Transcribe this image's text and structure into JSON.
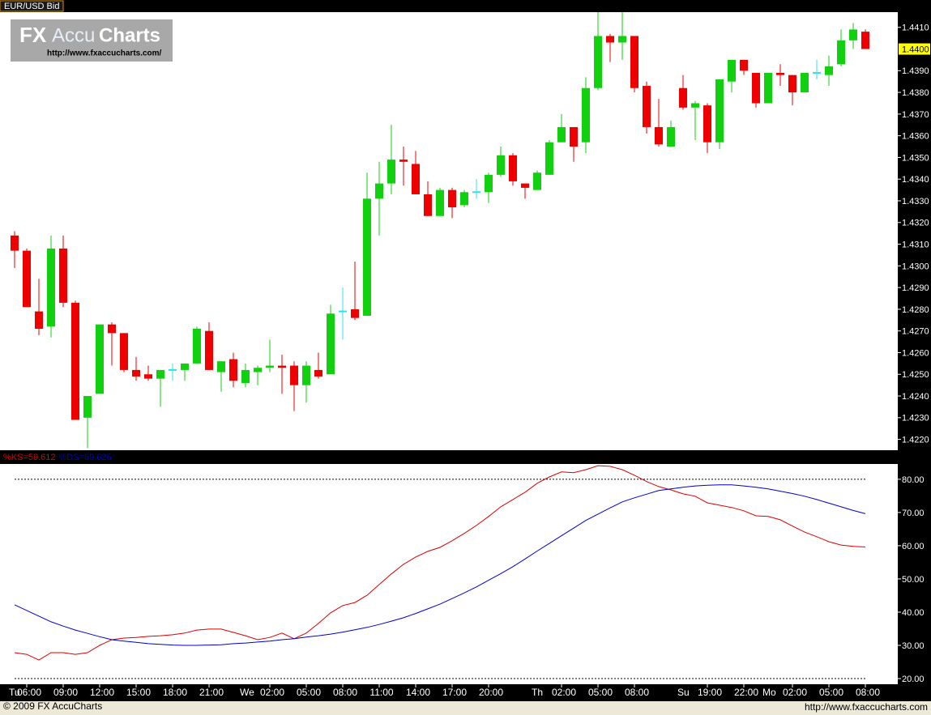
{
  "chart_data": [
    {
      "type": "candlestick",
      "title": "EUR/USD Bid",
      "categories": [
        null,
        "06:00",
        null,
        null,
        "09:00",
        null,
        null,
        "12:00",
        null,
        null,
        "15:00",
        null,
        null,
        "18:00",
        null,
        null,
        "21:00",
        null,
        null,
        null,
        null,
        "02:00",
        null,
        null,
        "05:00",
        null,
        null,
        "08:00",
        null,
        null,
        "11:00",
        null,
        null,
        "14:00",
        null,
        null,
        "17:00",
        null,
        null,
        "20:00",
        null,
        null,
        null,
        null,
        null,
        "02:00",
        null,
        null,
        "05:00",
        null,
        null,
        "08:00",
        null,
        null,
        null,
        null,
        null,
        "19:00",
        null,
        null,
        "22:00",
        null,
        null,
        null,
        "02:00",
        null,
        null,
        "05:00",
        null,
        null,
        "08:00"
      ],
      "day_labels": [
        "Tu",
        null,
        null,
        null,
        null,
        null,
        null,
        null,
        null,
        null,
        null,
        null,
        null,
        null,
        null,
        null,
        null,
        null,
        null,
        "We",
        null,
        null,
        null,
        null,
        null,
        null,
        null,
        null,
        null,
        null,
        null,
        null,
        null,
        null,
        null,
        null,
        null,
        null,
        null,
        null,
        null,
        null,
        null,
        "Th",
        null,
        null,
        null,
        null,
        null,
        null,
        null,
        null,
        null,
        null,
        null,
        "Su",
        null,
        null,
        null,
        null,
        null,
        null,
        "Mo",
        null,
        null,
        null,
        null,
        null,
        null,
        null,
        null
      ],
      "open": [
        1.4314,
        1.4307,
        1.4279,
        1.4272,
        1.4308,
        1.4283,
        1.423,
        1.4241,
        1.4273,
        1.4269,
        1.4252,
        1.425,
        1.4248,
        1.4252,
        1.4252,
        1.4255,
        1.427,
        1.4251,
        1.4257,
        1.4246,
        1.4251,
        1.4253,
        1.4254,
        1.4254,
        1.4245,
        1.4252,
        1.425,
        1.4279,
        1.428,
        1.4277,
        1.4331,
        1.4338,
        1.4349,
        1.4347,
        1.4333,
        1.4323,
        1.4335,
        1.4328,
        1.4334,
        1.4334,
        1.4342,
        1.4351,
        1.4338,
        1.4335,
        1.4342,
        1.4357,
        1.4364,
        1.4357,
        1.4382,
        1.4406,
        1.4403,
        1.4406,
        1.4383,
        1.4364,
        1.4355,
        1.4382,
        1.4373,
        1.4374,
        1.4357,
        1.4385,
        1.4395,
        1.4389,
        1.4375,
        1.4389,
        1.4388,
        1.438,
        1.4389,
        1.4388,
        1.4393,
        1.4404,
        1.4408
      ],
      "high": [
        1.4316,
        1.4308,
        1.4294,
        1.4314,
        1.4314,
        1.4284,
        1.424,
        1.4273,
        1.4274,
        1.4269,
        1.4258,
        1.4254,
        1.4252,
        1.4255,
        1.4255,
        1.4272,
        1.4274,
        1.4256,
        1.426,
        1.4255,
        1.4254,
        1.4266,
        1.4259,
        1.4256,
        1.4256,
        1.426,
        1.4282,
        1.429,
        1.4302,
        1.4343,
        1.4348,
        1.4365,
        1.4355,
        1.4353,
        1.4339,
        1.4336,
        1.4336,
        1.4335,
        1.434,
        1.4343,
        1.4355,
        1.4352,
        1.4338,
        1.4344,
        1.4358,
        1.437,
        1.4364,
        1.4387,
        1.4417,
        1.4407,
        1.4417,
        1.4406,
        1.4385,
        1.4377,
        1.4367,
        1.4388,
        1.4376,
        1.4375,
        1.4386,
        1.4395,
        1.4395,
        1.4389,
        1.4389,
        1.4393,
        1.4388,
        1.4389,
        1.4395,
        1.4397,
        1.4409,
        1.4412,
        1.4409
      ],
      "low": [
        1.4299,
        1.4281,
        1.4268,
        1.4267,
        1.4281,
        1.4229,
        1.4216,
        1.4241,
        1.4254,
        1.4251,
        1.4247,
        1.4247,
        1.4235,
        1.4247,
        1.4247,
        1.4255,
        1.4252,
        1.4242,
        1.4244,
        1.4244,
        1.4245,
        1.4251,
        1.4241,
        1.4233,
        1.4237,
        1.4248,
        1.425,
        1.4266,
        1.4275,
        1.4277,
        1.4314,
        1.4333,
        1.4337,
        1.4333,
        1.4323,
        1.4323,
        1.4322,
        1.4327,
        1.4331,
        1.4329,
        1.4341,
        1.4337,
        1.4331,
        1.4335,
        1.4342,
        1.4357,
        1.4348,
        1.4352,
        1.4381,
        1.4394,
        1.4395,
        1.438,
        1.4361,
        1.4355,
        1.4355,
        1.4372,
        1.4358,
        1.4352,
        1.4354,
        1.438,
        1.4388,
        1.4373,
        1.4375,
        1.4383,
        1.4374,
        1.438,
        1.4386,
        1.4383,
        1.4392,
        1.44,
        1.44
      ],
      "close": [
        1.4307,
        1.4281,
        1.4271,
        1.4308,
        1.4283,
        1.4229,
        1.424,
        1.4273,
        1.4269,
        1.4252,
        1.4249,
        1.4248,
        1.4252,
        1.4252,
        1.4255,
        1.4271,
        1.4252,
        1.4256,
        1.4247,
        1.4252,
        1.4253,
        1.4254,
        1.4253,
        1.4245,
        1.4254,
        1.4249,
        1.4278,
        1.4279,
        1.4276,
        1.4331,
        1.4338,
        1.4349,
        1.4348,
        1.4333,
        1.4323,
        1.4335,
        1.4327,
        1.4334,
        1.4334,
        1.4342,
        1.4351,
        1.4339,
        1.4336,
        1.4343,
        1.4357,
        1.4364,
        1.4355,
        1.4382,
        1.4406,
        1.4403,
        1.4406,
        1.4382,
        1.4364,
        1.4356,
        1.4364,
        1.4373,
        1.4375,
        1.4357,
        1.4386,
        1.4395,
        1.439,
        1.4375,
        1.4389,
        1.4388,
        1.438,
        1.4389,
        1.4389,
        1.4392,
        1.4404,
        1.4409,
        1.44
      ],
      "up_color": "#10d010",
      "down_color": "#ee0000",
      "doji_color": "#30e0f0",
      "ylim": [
        1.4215,
        1.4417
      ],
      "yticks": [
        {
          "value": 1.422,
          "label": "1.4220"
        },
        {
          "value": 1.423,
          "label": "1.4230"
        },
        {
          "value": 1.424,
          "label": "1.4240"
        },
        {
          "value": 1.425,
          "label": "1.4250"
        },
        {
          "value": 1.426,
          "label": "1.4260"
        },
        {
          "value": 1.427,
          "label": "1.4270"
        },
        {
          "value": 1.428,
          "label": "1.4280"
        },
        {
          "value": 1.429,
          "label": "1.4290"
        },
        {
          "value": 1.43,
          "label": "1.4300"
        },
        {
          "value": 1.431,
          "label": "1.4310"
        },
        {
          "value": 1.432,
          "label": "1.4320"
        },
        {
          "value": 1.433,
          "label": "1.4330"
        },
        {
          "value": 1.434,
          "label": "1.4340"
        },
        {
          "value": 1.435,
          "label": "1.4350"
        },
        {
          "value": 1.436,
          "label": "1.4360"
        },
        {
          "value": 1.437,
          "label": "1.4370"
        },
        {
          "value": 1.438,
          "label": "1.4380"
        },
        {
          "value": 1.439,
          "label": "1.4390"
        },
        {
          "value": 1.441,
          "label": "1.4410"
        }
      ],
      "last_price": {
        "value": 1.44,
        "label": "1.4400"
      }
    },
    {
      "type": "line",
      "series": [
        {
          "name": "%KS=59.612",
          "color": "#dd0000",
          "values": [
            27.8,
            27.3,
            25.6,
            27.8,
            27.8,
            27.3,
            27.8,
            30.0,
            31.7,
            32.2,
            32.4,
            32.7,
            32.9,
            33.2,
            33.7,
            34.6,
            34.9,
            34.9,
            33.9,
            32.9,
            31.7,
            32.4,
            33.7,
            32.0,
            33.7,
            36.6,
            39.8,
            42.0,
            42.9,
            45.1,
            48.3,
            51.5,
            54.4,
            56.6,
            58.3,
            59.5,
            61.5,
            63.7,
            66.1,
            68.8,
            71.7,
            73.9,
            76.1,
            78.8,
            80.7,
            82.2,
            82.0,
            82.9,
            84.1,
            83.9,
            82.9,
            81.2,
            79.3,
            77.8,
            76.8,
            75.6,
            74.9,
            72.9,
            72.2,
            71.5,
            70.5,
            69.0,
            68.8,
            67.8,
            65.9,
            64.1,
            62.7,
            61.2,
            60.2,
            59.8,
            59.612
          ]
        },
        {
          "name": "%DS=69.626",
          "color": "#0000cc",
          "values": [
            42.2,
            40.5,
            38.8,
            37.1,
            35.8,
            34.6,
            33.6,
            32.6,
            31.7,
            31.3,
            30.9,
            30.5,
            30.3,
            30.1,
            30.0,
            30.0,
            30.1,
            30.2,
            30.5,
            30.7,
            31.0,
            31.3,
            31.7,
            32.0,
            32.5,
            32.9,
            33.4,
            34.0,
            34.7,
            35.4,
            36.3,
            37.3,
            38.3,
            39.6,
            41.0,
            42.4,
            44.1,
            45.8,
            47.6,
            49.6,
            51.6,
            53.7,
            56.0,
            58.4,
            60.7,
            63.0,
            65.3,
            67.6,
            69.5,
            71.4,
            73.2,
            74.4,
            75.5,
            76.6,
            77.1,
            77.6,
            78.0,
            78.2,
            78.3,
            78.3,
            78.0,
            77.6,
            77.1,
            76.4,
            75.7,
            74.9,
            73.9,
            72.8,
            71.7,
            70.6,
            69.626
          ]
        }
      ],
      "reference_lines": [
        80,
        20
      ],
      "ylim": [
        18.3,
        84.6
      ],
      "yticks": [
        {
          "value": 20,
          "label": "20.00"
        },
        {
          "value": 30,
          "label": "30.00"
        },
        {
          "value": 40,
          "label": "40.00"
        },
        {
          "value": 50,
          "label": "50.00"
        },
        {
          "value": 60,
          "label": "60.00"
        },
        {
          "value": 70,
          "label": "70.00"
        },
        {
          "value": 80,
          "label": "80.00"
        }
      ]
    }
  ],
  "watermark": {
    "fx": "FX",
    "accu": "Accu",
    "charts": "Charts",
    "url": "http://www.fxaccucharts.com/"
  },
  "footer": {
    "copyright": "© 2009 FX AccuCharts",
    "url": "http://www.fxaccucharts.com"
  }
}
